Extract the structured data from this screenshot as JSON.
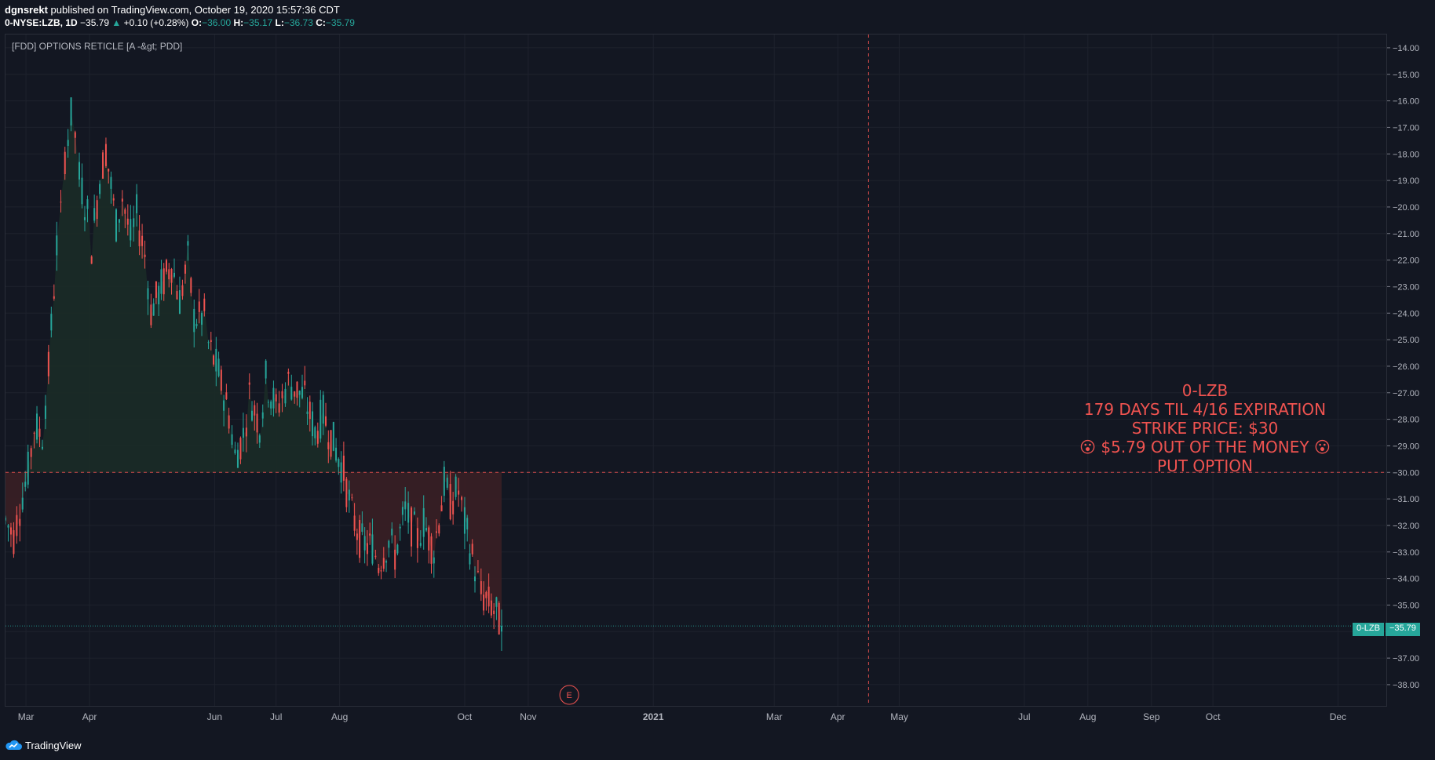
{
  "header": {
    "author": "dgnsrekt",
    "published": "published on TradingView.com, October 19, 2020 15:57:36 CDT"
  },
  "ohlc": {
    "symbol": "0-NYSE:LZB, 1D",
    "last": "−35.79",
    "change": "+0.10 (+0.28%)",
    "o_label": "O:",
    "o": "−36.00",
    "h_label": "H:",
    "h": "−35.17",
    "l_label": "L:",
    "l": "−36.73",
    "c_label": "C:",
    "c": "−35.79"
  },
  "indicator": "[FDD] OPTIONS RETICLE [A -&gt; PDD]",
  "annotation": {
    "lines": [
      "0-LZB",
      "179 DAYS TIL 4/16 EXPIRATION",
      "STRIKE PRICE: $30",
      "😮 $5.79 OUT OF THE MONEY 😮",
      "PUT OPTION"
    ]
  },
  "price_tag": {
    "symbol": "0-LZB",
    "value": "−35.79"
  },
  "earnings_marker": "E",
  "footer": {
    "brand": "TradingView"
  },
  "colors": {
    "up": "#26a69a",
    "down": "#ef5350",
    "background": "#131722",
    "grid": "#1e222d",
    "strike_line": "#ef5350",
    "fill_up": "#1b2b27",
    "fill_down": "#3a1f25"
  },
  "chart_data": {
    "type": "candlestick",
    "strike": -30,
    "last_price": -35.79,
    "expiration_marker": "Apr 16, 2021",
    "earnings_date": "Nov 2020",
    "ylim": [
      -38.8,
      -13.5
    ],
    "y_ticks": [
      "−14.00",
      "−15.00",
      "−16.00",
      "−17.00",
      "−18.00",
      "−19.00",
      "−20.00",
      "−21.00",
      "−22.00",
      "−23.00",
      "−24.00",
      "−25.00",
      "−26.00",
      "−27.00",
      "−28.00",
      "−29.00",
      "−30.00",
      "−31.00",
      "−32.00",
      "−33.00",
      "−34.00",
      "−35.00",
      "−36.00",
      "−37.00",
      "−38.00"
    ],
    "y_tick_values": [
      -14,
      -15,
      -16,
      -17,
      -18,
      -19,
      -20,
      -21,
      -22,
      -23,
      -24,
      -25,
      -26,
      -27,
      -28,
      -29,
      -30,
      -31,
      -32,
      -33,
      -34,
      -35,
      -36,
      -37,
      -38
    ],
    "x_ticks": [
      "Mar",
      "Apr",
      "Jun",
      "Jul",
      "Aug",
      "Oct",
      "Nov",
      "2021",
      "Mar",
      "Apr",
      "May",
      "Jul",
      "Aug",
      "Sep",
      "Oct",
      "Dec"
    ],
    "x_tick_dates": [
      "2020-03-01",
      "2020-04-01",
      "2020-06-01",
      "2020-07-01",
      "2020-08-01",
      "2020-10-01",
      "2020-11-01",
      "2021-01-01",
      "2021-03-01",
      "2021-04-01",
      "2021-05-01",
      "2021-07-01",
      "2021-08-01",
      "2021-09-01",
      "2021-10-01",
      "2021-12-01"
    ],
    "price_path": [
      [
        "2020-02-20",
        -31.8
      ],
      [
        "2020-02-24",
        -32.4
      ],
      [
        "2020-02-27",
        -31.3
      ],
      [
        "2020-03-02",
        -30.0
      ],
      [
        "2020-03-05",
        -28.3
      ],
      [
        "2020-03-09",
        -28.6
      ],
      [
        "2020-03-12",
        -26.1
      ],
      [
        "2020-03-16",
        -21.5
      ],
      [
        "2020-03-18",
        -20.4
      ],
      [
        "2020-03-20",
        -18.0
      ],
      [
        "2020-03-23",
        -16.6
      ],
      [
        "2020-03-25",
        -17.3
      ],
      [
        "2020-03-27",
        -18.9
      ],
      [
        "2020-03-31",
        -20.3
      ],
      [
        "2020-04-02",
        -21.4
      ],
      [
        "2020-04-06",
        -18.9
      ],
      [
        "2020-04-09",
        -17.8
      ],
      [
        "2020-04-14",
        -20.7
      ],
      [
        "2020-04-17",
        -19.6
      ],
      [
        "2020-04-21",
        -21.2
      ],
      [
        "2020-04-24",
        -20.3
      ],
      [
        "2020-04-28",
        -21.8
      ],
      [
        "2020-05-01",
        -23.9
      ],
      [
        "2020-05-06",
        -23.0
      ],
      [
        "2020-05-11",
        -22.1
      ],
      [
        "2020-05-15",
        -23.5
      ],
      [
        "2020-05-19",
        -22.0
      ],
      [
        "2020-05-22",
        -24.2
      ],
      [
        "2020-05-27",
        -24.1
      ],
      [
        "2020-05-29",
        -25.2
      ],
      [
        "2020-06-03",
        -26.3
      ],
      [
        "2020-06-08",
        -27.8
      ],
      [
        "2020-06-11",
        -29.4
      ],
      [
        "2020-06-15",
        -28.6
      ],
      [
        "2020-06-18",
        -27.1
      ],
      [
        "2020-06-23",
        -28.2
      ],
      [
        "2020-06-26",
        -26.5
      ],
      [
        "2020-07-01",
        -27.6
      ],
      [
        "2020-07-07",
        -26.6
      ],
      [
        "2020-07-10",
        -26.8
      ],
      [
        "2020-07-15",
        -27.2
      ],
      [
        "2020-07-20",
        -28.5
      ],
      [
        "2020-07-24",
        -27.8
      ],
      [
        "2020-07-29",
        -28.9
      ],
      [
        "2020-08-03",
        -30.0
      ],
      [
        "2020-08-07",
        -31.6
      ],
      [
        "2020-08-12",
        -32.7
      ],
      [
        "2020-08-17",
        -32.8
      ],
      [
        "2020-08-20",
        -33.4
      ],
      [
        "2020-08-25",
        -32.6
      ],
      [
        "2020-08-28",
        -33.1
      ],
      [
        "2020-09-02",
        -31.5
      ],
      [
        "2020-09-08",
        -32.5
      ],
      [
        "2020-09-11",
        -31.9
      ],
      [
        "2020-09-16",
        -32.9
      ],
      [
        "2020-09-21",
        -30.5
      ],
      [
        "2020-09-24",
        -31.1
      ],
      [
        "2020-09-28",
        -30.7
      ],
      [
        "2020-10-01",
        -32.0
      ],
      [
        "2020-10-06",
        -33.6
      ],
      [
        "2020-10-09",
        -34.6
      ],
      [
        "2020-10-14",
        -35.0
      ],
      [
        "2020-10-19",
        -35.79
      ]
    ]
  }
}
